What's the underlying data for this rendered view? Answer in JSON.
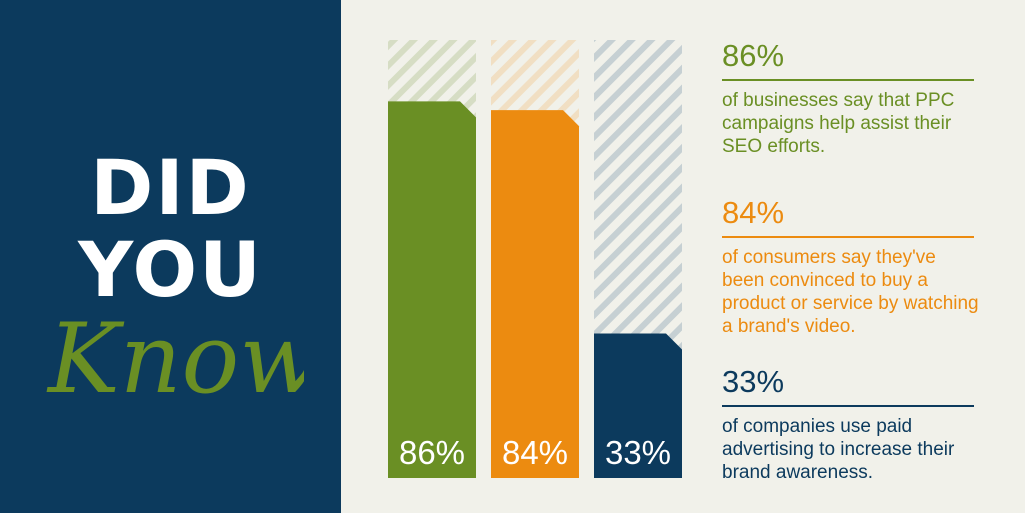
{
  "headline": {
    "line1": "DID",
    "line2": "YOU",
    "line3": "Know?"
  },
  "colors": {
    "navy": "#0c3a5d",
    "green": "#6a8f24",
    "orange": "#ec8b10",
    "background": "#f1f1ea"
  },
  "chart_data": {
    "type": "bar",
    "categories": [
      "86%",
      "84%",
      "33%"
    ],
    "values": [
      86,
      84,
      33
    ],
    "ylim": [
      0,
      100
    ],
    "colors": [
      "#6a8f24",
      "#ec8b10",
      "#0c3a5d"
    ],
    "title": "",
    "xlabel": "",
    "ylabel": ""
  },
  "stats": [
    {
      "value": "86%",
      "description": "of businesses say that PPC campaigns help assist their SEO efforts."
    },
    {
      "value": "84%",
      "description": "of consumers say they've been convinced to buy a product or service by watching a brand's video."
    },
    {
      "value": "33%",
      "description": "of companies use paid advertising to increase their brand awareness."
    }
  ]
}
